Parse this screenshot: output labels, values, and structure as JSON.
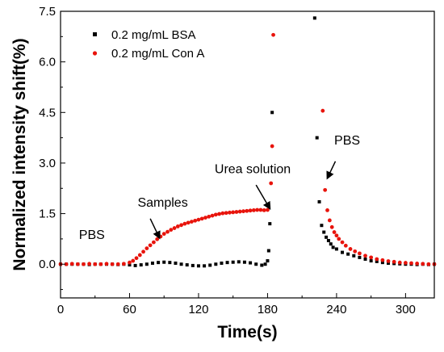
{
  "chart_data": {
    "type": "scatter",
    "xlabel": "Time(s)",
    "ylabel": "Normalized intensity shift(%)",
    "xlim": [
      0,
      325
    ],
    "ylim": [
      -1.0,
      7.5
    ],
    "xticks": [
      "0",
      "60",
      "120",
      "180",
      "240",
      "300"
    ],
    "yticks": [
      "0.0",
      "1.5",
      "3.0",
      "4.5",
      "6.0",
      "7.5"
    ],
    "grid": false,
    "legend_position": "top-left",
    "series": [
      {
        "name": "0.2 mg/mL BSA",
        "color": "#000000",
        "marker": "square",
        "points": [
          [
            0,
            0.0
          ],
          [
            5,
            0.0
          ],
          [
            10,
            0.0
          ],
          [
            15,
            0.0
          ],
          [
            20,
            0.0
          ],
          [
            25,
            -0.01
          ],
          [
            30,
            0.0
          ],
          [
            35,
            0.0
          ],
          [
            40,
            0.0
          ],
          [
            45,
            0.0
          ],
          [
            50,
            -0.01
          ],
          [
            55,
            0.0
          ],
          [
            60,
            -0.02
          ],
          [
            65,
            -0.04
          ],
          [
            70,
            -0.02
          ],
          [
            75,
            0.0
          ],
          [
            80,
            0.03
          ],
          [
            85,
            0.05
          ],
          [
            90,
            0.06
          ],
          [
            95,
            0.05
          ],
          [
            100,
            0.03
          ],
          [
            105,
            0.0
          ],
          [
            110,
            -0.02
          ],
          [
            115,
            -0.04
          ],
          [
            120,
            -0.05
          ],
          [
            125,
            -0.05
          ],
          [
            130,
            -0.03
          ],
          [
            135,
            0.0
          ],
          [
            140,
            0.03
          ],
          [
            145,
            0.05
          ],
          [
            150,
            0.06
          ],
          [
            155,
            0.07
          ],
          [
            160,
            0.06
          ],
          [
            165,
            0.04
          ],
          [
            170,
            0.0
          ],
          [
            175,
            -0.03
          ],
          [
            178,
            0.0
          ],
          [
            180,
            0.1
          ],
          [
            181,
            0.4
          ],
          [
            182,
            1.2
          ],
          [
            184,
            4.5
          ],
          [
            221,
            7.3
          ],
          [
            223,
            3.75
          ],
          [
            225,
            1.85
          ],
          [
            227,
            1.15
          ],
          [
            229,
            0.95
          ],
          [
            231,
            0.8
          ],
          [
            233,
            0.7
          ],
          [
            235,
            0.6
          ],
          [
            237,
            0.5
          ],
          [
            240,
            0.45
          ],
          [
            245,
            0.35
          ],
          [
            250,
            0.3
          ],
          [
            255,
            0.25
          ],
          [
            260,
            0.2
          ],
          [
            265,
            0.15
          ],
          [
            270,
            0.1
          ],
          [
            275,
            0.08
          ],
          [
            280,
            0.05
          ],
          [
            285,
            0.03
          ],
          [
            290,
            0.02
          ],
          [
            295,
            0.01
          ],
          [
            300,
            0.0
          ],
          [
            305,
            0.0
          ],
          [
            310,
            -0.01
          ],
          [
            315,
            0.0
          ],
          [
            320,
            -0.01
          ],
          [
            325,
            0.0
          ]
        ]
      },
      {
        "name": "0.2 mg/mL Con A",
        "color": "#e8140c",
        "marker": "circle",
        "points": [
          [
            0,
            0.0
          ],
          [
            5,
            0.0
          ],
          [
            10,
            0.01
          ],
          [
            15,
            0.0
          ],
          [
            20,
            0.0
          ],
          [
            25,
            0.01
          ],
          [
            30,
            0.0
          ],
          [
            35,
            0.0
          ],
          [
            40,
            0.01
          ],
          [
            45,
            0.0
          ],
          [
            50,
            0.0
          ],
          [
            55,
            0.01
          ],
          [
            60,
            0.05
          ],
          [
            63,
            0.1
          ],
          [
            66,
            0.18
          ],
          [
            69,
            0.27
          ],
          [
            72,
            0.37
          ],
          [
            75,
            0.47
          ],
          [
            78,
            0.56
          ],
          [
            81,
            0.65
          ],
          [
            84,
            0.74
          ],
          [
            87,
            0.82
          ],
          [
            90,
            0.9
          ],
          [
            93,
            0.96
          ],
          [
            96,
            1.02
          ],
          [
            99,
            1.07
          ],
          [
            102,
            1.12
          ],
          [
            105,
            1.16
          ],
          [
            108,
            1.2
          ],
          [
            111,
            1.23
          ],
          [
            114,
            1.26
          ],
          [
            117,
            1.29
          ],
          [
            120,
            1.32
          ],
          [
            123,
            1.35
          ],
          [
            126,
            1.38
          ],
          [
            129,
            1.41
          ],
          [
            132,
            1.44
          ],
          [
            135,
            1.47
          ],
          [
            138,
            1.49
          ],
          [
            141,
            1.51
          ],
          [
            144,
            1.52
          ],
          [
            147,
            1.53
          ],
          [
            150,
            1.54
          ],
          [
            153,
            1.55
          ],
          [
            156,
            1.56
          ],
          [
            159,
            1.57
          ],
          [
            162,
            1.58
          ],
          [
            165,
            1.59
          ],
          [
            168,
            1.6
          ],
          [
            171,
            1.61
          ],
          [
            174,
            1.61
          ],
          [
            177,
            1.6
          ],
          [
            180,
            1.61
          ],
          [
            183,
            2.4
          ],
          [
            184,
            3.5
          ],
          [
            185,
            6.8
          ],
          [
            228,
            4.55
          ],
          [
            230,
            2.2
          ],
          [
            232,
            1.6
          ],
          [
            234,
            1.3
          ],
          [
            236,
            1.1
          ],
          [
            238,
            0.95
          ],
          [
            240,
            0.85
          ],
          [
            242,
            0.75
          ],
          [
            245,
            0.65
          ],
          [
            248,
            0.55
          ],
          [
            252,
            0.45
          ],
          [
            256,
            0.38
          ],
          [
            260,
            0.32
          ],
          [
            265,
            0.25
          ],
          [
            270,
            0.2
          ],
          [
            275,
            0.15
          ],
          [
            280,
            0.12
          ],
          [
            285,
            0.09
          ],
          [
            290,
            0.07
          ],
          [
            295,
            0.05
          ],
          [
            300,
            0.04
          ],
          [
            305,
            0.03
          ],
          [
            310,
            0.02
          ],
          [
            315,
            0.01
          ],
          [
            320,
            0.0
          ],
          [
            325,
            0.0
          ]
        ]
      }
    ],
    "annotations": [
      {
        "text": "PBS",
        "x": 16,
        "y": 0.75
      },
      {
        "text": "Samples",
        "x": 67,
        "y": 1.7
      },
      {
        "text": "Urea solution",
        "x": 134,
        "y": 2.7
      },
      {
        "text": "PBS",
        "x": 238,
        "y": 3.55
      }
    ],
    "arrows": [
      {
        "from": [
          78,
          1.35
        ],
        "to": [
          86,
          0.78
        ]
      },
      {
        "from": [
          170,
          2.35
        ],
        "to": [
          182,
          1.65
        ]
      },
      {
        "from": [
          239,
          3.05
        ],
        "to": [
          232,
          2.55
        ]
      }
    ]
  }
}
